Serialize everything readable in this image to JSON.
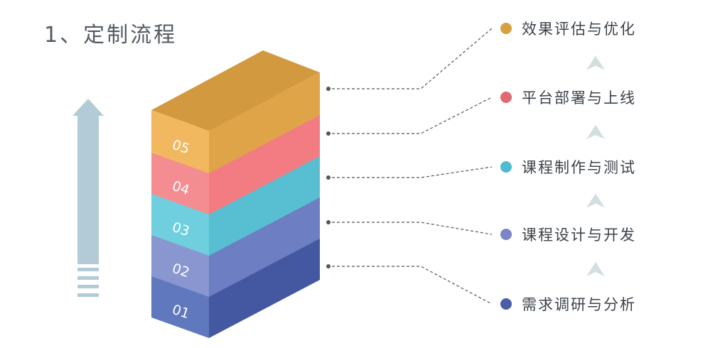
{
  "title": "1、定制流程",
  "layers": [
    {
      "num": "01",
      "top": "#4d67ae",
      "front": "#6078be",
      "side": "#4458a2"
    },
    {
      "num": "02",
      "top": "#6b7cc0",
      "front": "#8a96d0",
      "side": "#6d7ec2"
    },
    {
      "num": "03",
      "top": "#4e9aa9",
      "front": "#6fcfde",
      "side": "#58bfd3"
    },
    {
      "num": "04",
      "top": "#e16570",
      "front": "#f38d92",
      "side": "#f27c82"
    },
    {
      "num": "05",
      "top": "#d2993f",
      "front": "#f2b860",
      "side": "#e0a448"
    }
  ],
  "steps": [
    {
      "label": "需求调研与分析",
      "color": "#4a5ea8"
    },
    {
      "label": "课程设计与开发",
      "color": "#7c86c4"
    },
    {
      "label": "课程制作与测试",
      "color": "#4dbbd0"
    },
    {
      "label": "平台部署与上线",
      "color": "#e0696f"
    },
    {
      "label": "效果评估与优化",
      "color": "#d7a142"
    }
  ],
  "colors": {
    "arrow": "#b3cbd6",
    "small_arrow": "#d2dee0",
    "connector": "#555555"
  }
}
